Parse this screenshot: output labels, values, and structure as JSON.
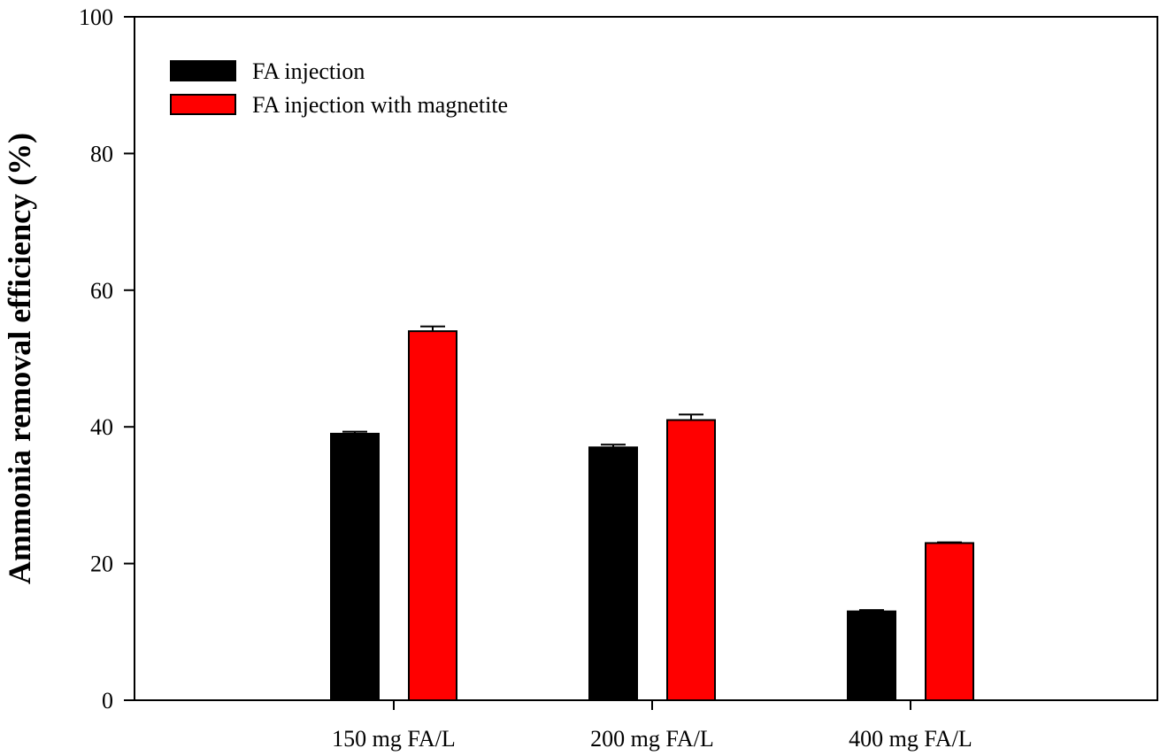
{
  "chart_data": {
    "type": "bar",
    "title": "",
    "xlabel": "",
    "ylabel": "Ammonia removal efficiency (%)",
    "ylim": [
      0,
      100
    ],
    "yticks": [
      0,
      20,
      40,
      60,
      80,
      100
    ],
    "grid": false,
    "legend_position": "top-left",
    "categories": [
      "150 mg FA/L",
      "200 mg FA/L",
      "400 mg FA/L"
    ],
    "series": [
      {
        "name": "FA injection",
        "color": "#000000",
        "values": [
          39,
          37,
          13
        ],
        "errors": [
          0.3,
          0.4,
          0.2
        ]
      },
      {
        "name": "FA injection with magnetite",
        "color": "#ff0000",
        "values": [
          54,
          41,
          23
        ],
        "errors": [
          0.7,
          0.8,
          0.1
        ]
      }
    ]
  }
}
